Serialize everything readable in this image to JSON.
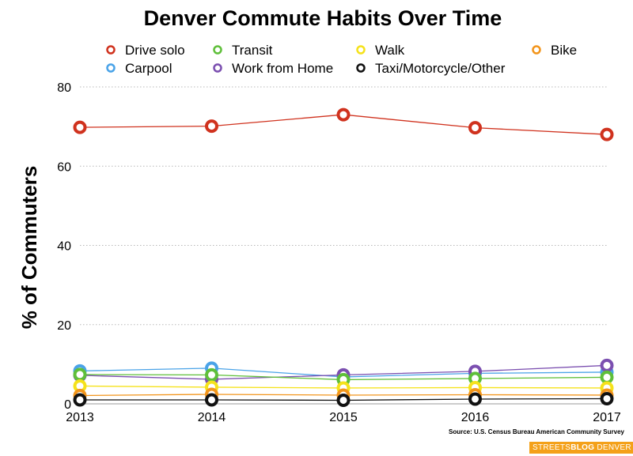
{
  "chart_data": {
    "type": "line",
    "title": "Denver Commute Habits Over Time",
    "ylabel": "% of Commuters",
    "xlabel": "",
    "x": [
      2013,
      2014,
      2015,
      2016,
      2017
    ],
    "ylim": [
      0,
      80
    ],
    "yticks": [
      0,
      20,
      40,
      60,
      80
    ],
    "grid": true,
    "legend_position": "top",
    "series": [
      {
        "name": "Drive solo",
        "color": "#d0321e",
        "values": [
          69.8,
          70.1,
          73.0,
          69.7,
          68.0
        ]
      },
      {
        "name": "Transit",
        "color": "#5fbf3a",
        "values": [
          7.4,
          7.3,
          6.1,
          6.4,
          6.7
        ]
      },
      {
        "name": "Walk",
        "color": "#f5e21b",
        "values": [
          4.5,
          4.2,
          4.0,
          4.1,
          4.0
        ]
      },
      {
        "name": "Bike",
        "color": "#f2951c",
        "values": [
          2.1,
          2.4,
          2.2,
          2.3,
          2.2
        ]
      },
      {
        "name": "Carpool",
        "color": "#4aa3e8",
        "values": [
          8.3,
          9.0,
          6.8,
          7.7,
          8.0
        ]
      },
      {
        "name": "Work from Home",
        "color": "#7b4fb0",
        "values": [
          7.2,
          6.2,
          7.3,
          8.2,
          9.7
        ]
      },
      {
        "name": "Taxi/Motorcycle/Other",
        "color": "#111111",
        "values": [
          1.0,
          1.0,
          0.9,
          1.2,
          1.3
        ]
      }
    ]
  },
  "source": "Source: U.S. Census Bureau American Community Survey",
  "brand": {
    "part1": "STREETS",
    "part2": "BLOG",
    "part3": "DENVER"
  }
}
